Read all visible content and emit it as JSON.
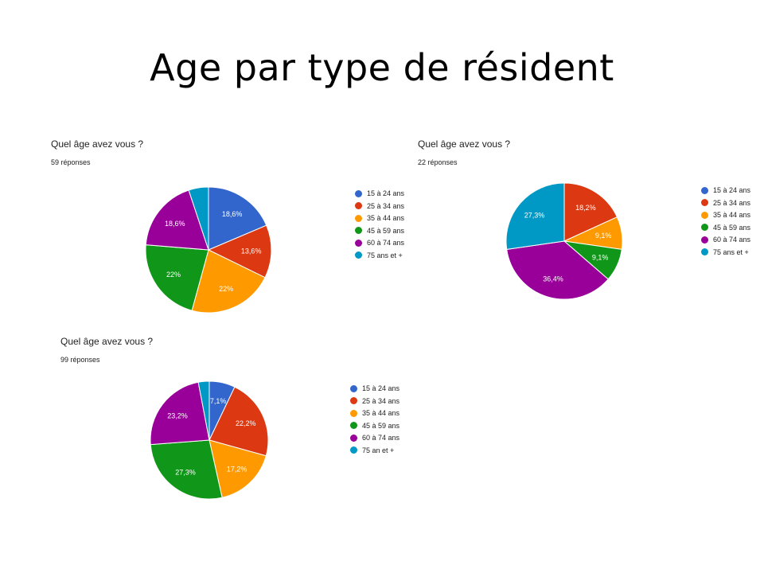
{
  "slide_title": "Age par type de résident",
  "colors": [
    "#3366cc",
    "#dc3912",
    "#ff9900",
    "#109618",
    "#990099",
    "#0099c6"
  ],
  "chart_data": [
    {
      "type": "pie",
      "title": "Quel âge avez vous ?",
      "subtitle": "59 réponses",
      "categories": [
        "15 à 24 ans",
        "25 à 34 ans",
        "35 à 44 ans",
        "45 à 59 ans",
        "60 à 74 ans",
        "75 ans et +"
      ],
      "values": [
        18.6,
        13.6,
        22,
        22,
        18.6,
        5.1
      ],
      "labels": [
        "18,6%",
        "13,6%",
        "22%",
        "22%",
        "18,6%",
        ""
      ],
      "legend_position": "right"
    },
    {
      "type": "pie",
      "title": "Quel âge avez vous ?",
      "subtitle": "22 réponses",
      "categories": [
        "15 à 24 ans",
        "25 à 34 ans",
        "35 à 44 ans",
        "45 à 59 ans",
        "60 à 74 ans",
        "75 ans et +"
      ],
      "values": [
        0,
        18.2,
        9.1,
        9.1,
        36.4,
        27.3
      ],
      "labels": [
        "",
        "18,2%",
        "9,1%",
        "9,1%",
        "36,4%",
        "27,3%"
      ],
      "legend_position": "right"
    },
    {
      "type": "pie",
      "title": "Quel âge avez vous ?",
      "subtitle": "99 réponses",
      "categories": [
        "15 à 24 ans",
        "25 à 34 ans",
        "35 à 44 ans",
        "45 à 59 ans",
        "60 à 74 ans",
        "75 an et +"
      ],
      "values": [
        7.1,
        22.2,
        17.2,
        27.3,
        23.2,
        3
      ],
      "labels": [
        "7,1%",
        "22,2%",
        "17,2%",
        "27,3%",
        "23,2%",
        ""
      ],
      "legend_position": "right"
    }
  ]
}
